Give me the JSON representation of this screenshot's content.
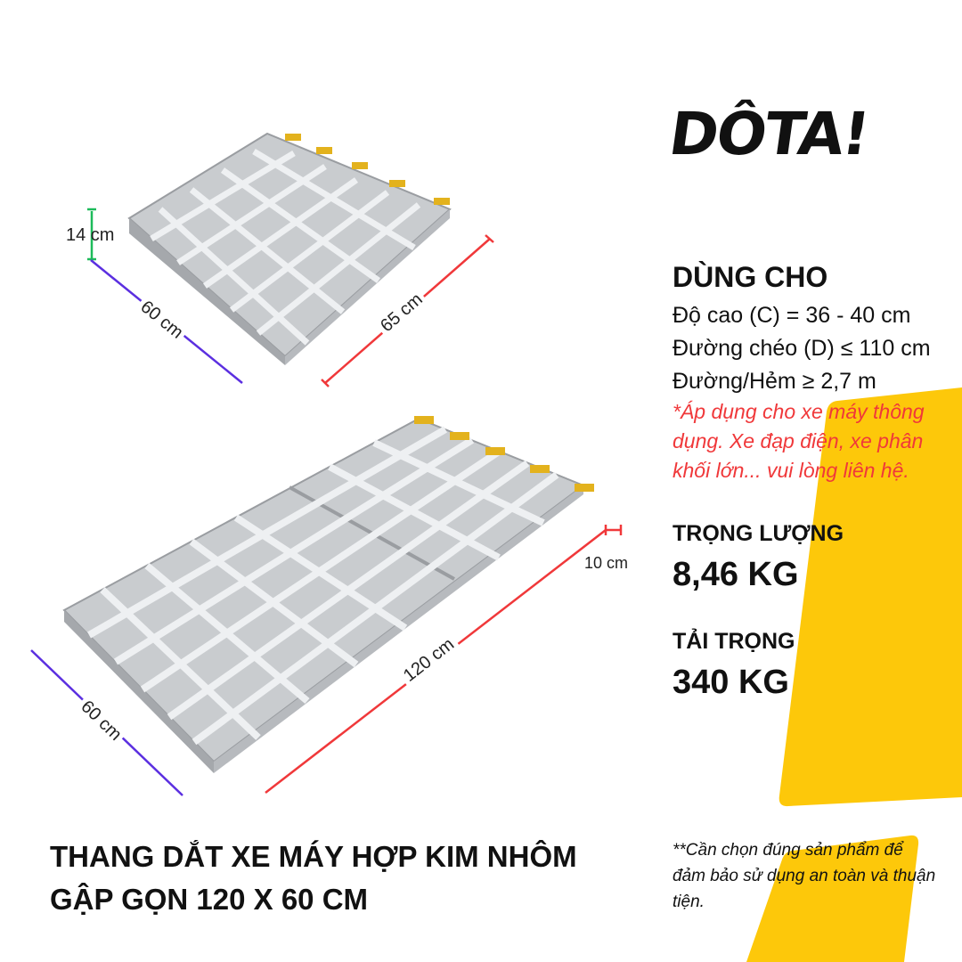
{
  "brand": {
    "logo": "DÔTA!"
  },
  "colors": {
    "accent_yellow": "#fdc80a",
    "note_red": "#f0383a",
    "dim_red": "#f0383a",
    "dim_purple": "#5b2fe0",
    "dim_green": "#1dbb5a"
  },
  "usage": {
    "heading": "DÙNG CHO",
    "lines": [
      "Độ cao (C) = 36 - 40 cm",
      "Đường chéo (D) ≤ 110 cm",
      "Đường/Hẻm ≥ 2,7 m"
    ],
    "note": "*Áp dụng cho xe máy thông dụng. Xe đạp điện, xe phân khối lớn... vui lòng liên hệ."
  },
  "weight": {
    "label": "TRỌNG LƯỢNG",
    "value": "8,46 KG"
  },
  "load": {
    "label": "TẢI TRỌNG",
    "value": "340 KG"
  },
  "product_title": [
    "THANG DẮT XE MÁY HỢP KIM NHÔM",
    "GẬP GỌN 120 X 60 CM"
  ],
  "footnote": "**Cần chọn đúng sản phẩm để đảm bảo sử dụng an toàn và thuận tiện.",
  "dimensions": {
    "folded": {
      "height": "14 cm",
      "width": "60 cm",
      "length": "65 cm"
    },
    "unfolded": {
      "width": "60 cm",
      "length": "120 cm",
      "hook": "10 cm"
    }
  }
}
